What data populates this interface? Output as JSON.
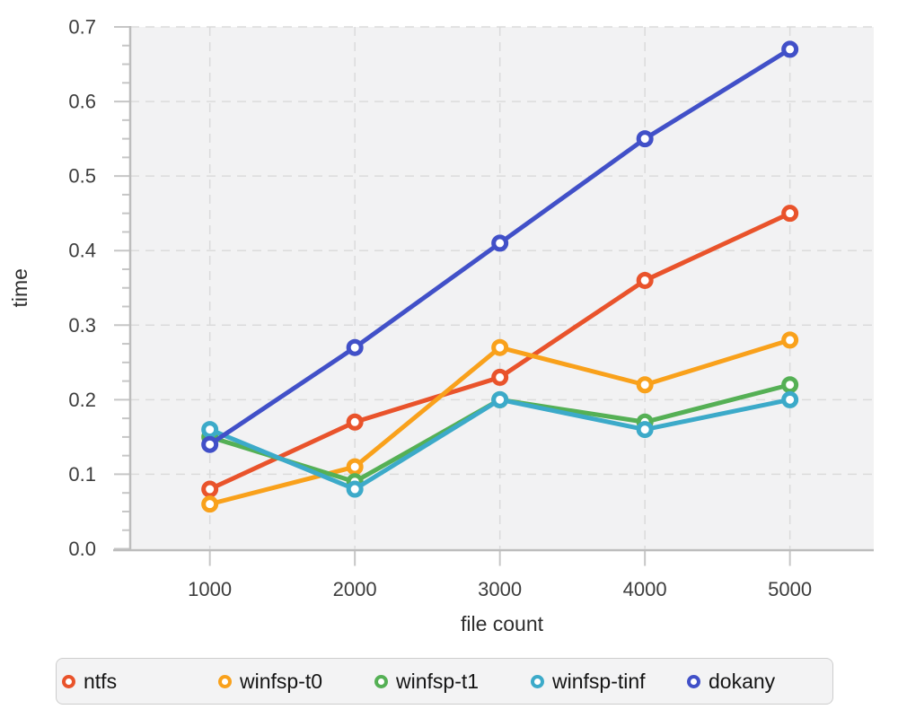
{
  "figure": {
    "background": "#ffffff",
    "plot_background": "#f2f2f3",
    "grid_color": "#dbdbdb",
    "spine_color": "#bdbdbd",
    "tick_color": "#c6c6c6",
    "tick_label_color": "#3d3d3d",
    "axis_label_color": "#2e2e2e",
    "legend": {
      "background": "#f3f3f4",
      "border_color": "#cdcdcd",
      "text_color": "#151515"
    }
  },
  "chart_data": {
    "type": "line",
    "title": "",
    "xlabel": "file count",
    "ylabel": "time",
    "x": [
      1000,
      2000,
      3000,
      4000,
      5000
    ],
    "xtick_labels": [
      "1000",
      "2000",
      "3000",
      "4000",
      "5000"
    ],
    "yticks": [
      0.0,
      0.1,
      0.2,
      0.3,
      0.4,
      0.5,
      0.6,
      0.7
    ],
    "ytick_labels": [
      "0.0",
      "0.1",
      "0.2",
      "0.3",
      "0.4",
      "0.5",
      "0.6",
      "0.7"
    ],
    "ylim": [
      0.0,
      0.7
    ],
    "grid": true,
    "legend_position": "bottom",
    "series": [
      {
        "name": "ntfs",
        "color": "#e9532b",
        "values": [
          0.08,
          0.17,
          0.23,
          0.36,
          0.45
        ]
      },
      {
        "name": "winfsp-t0",
        "color": "#f9a11b",
        "values": [
          0.06,
          0.11,
          0.27,
          0.22,
          0.28
        ]
      },
      {
        "name": "winfsp-t1",
        "color": "#55b055",
        "values": [
          0.15,
          0.09,
          0.2,
          0.17,
          0.22
        ]
      },
      {
        "name": "winfsp-tinf",
        "color": "#3caac9",
        "values": [
          0.16,
          0.08,
          0.2,
          0.16,
          0.2
        ]
      },
      {
        "name": "dokany",
        "color": "#4150c8",
        "values": [
          0.14,
          0.27,
          0.41,
          0.55,
          0.67
        ]
      }
    ]
  }
}
